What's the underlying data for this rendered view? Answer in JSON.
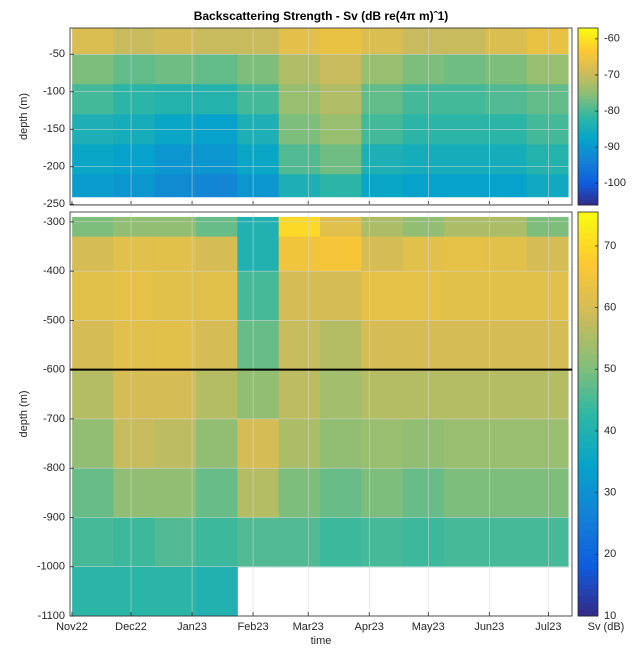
{
  "chart_data": [
    {
      "type": "heatmap",
      "title": "Backscattering Strength - Sv (dB re(4π m)ˆ1)",
      "ylabel": "depth (m)",
      "x_edges": [
        0,
        21,
        42,
        63,
        84,
        105,
        126,
        147,
        168,
        189,
        210,
        231,
        252
      ],
      "y_edges": [
        -15,
        -50,
        -90,
        -130,
        -170,
        -210,
        -240
      ],
      "values": [
        [
          -68,
          -70,
          -69,
          -70,
          -70,
          -67,
          -66,
          -68,
          -70,
          -70,
          -68,
          -66
        ],
        [
          -76,
          -78,
          -77,
          -78,
          -76,
          -72,
          -70,
          -74,
          -76,
          -77,
          -76,
          -74
        ],
        [
          -80,
          -82,
          -83,
          -83,
          -80,
          -74,
          -72,
          -78,
          -80,
          -80,
          -79,
          -78
        ],
        [
          -84,
          -85,
          -87,
          -88,
          -84,
          -76,
          -74,
          -80,
          -82,
          -82,
          -82,
          -80
        ],
        [
          -87,
          -88,
          -90,
          -90,
          -87,
          -79,
          -77,
          -84,
          -85,
          -85,
          -85,
          -83
        ],
        [
          -89,
          -90,
          -92,
          -93,
          -90,
          -84,
          -82,
          -87,
          -88,
          -88,
          -88,
          -86
        ]
      ],
      "xlim": [
        -1,
        254
      ],
      "ylim": [
        -251,
        -15
      ],
      "xticks": [
        0,
        30,
        61,
        92,
        120,
        151,
        181,
        212,
        242
      ],
      "yticks": [
        -250,
        -200,
        -150,
        -100,
        -50
      ],
      "clim": [
        -106,
        -57
      ],
      "cticks": [
        -100,
        -90,
        -80,
        -70,
        -60
      ],
      "grid": true,
      "colormap": [
        "#352a87",
        "#0f5cdd",
        "#1481d6",
        "#06a4ca",
        "#2eb7a4",
        "#87bf77",
        "#d1bb59",
        "#fec832",
        "#f9fb0e"
      ]
    },
    {
      "type": "heatmap",
      "ylabel": "depth (m)",
      "xlabel": "time",
      "colorbar_label": "Sv (dB)",
      "x_edges": [
        0,
        21,
        42,
        63,
        84,
        105,
        126,
        147,
        168,
        189,
        210,
        231,
        252
      ],
      "y_edges": [
        -290,
        -330,
        -400,
        -500,
        -600,
        -700,
        -800,
        -900,
        -1000,
        -1100
      ],
      "values": [
        [
          50,
          52,
          52,
          48,
          40,
          70,
          62,
          55,
          52,
          55,
          55,
          50
        ],
        [
          60,
          62,
          62,
          60,
          40,
          65,
          66,
          60,
          62,
          63,
          62,
          60
        ],
        [
          62,
          63,
          62,
          62,
          45,
          60,
          60,
          63,
          63,
          62,
          62,
          62
        ],
        [
          60,
          62,
          62,
          60,
          48,
          58,
          56,
          60,
          60,
          60,
          60,
          60
        ],
        [
          56,
          60,
          60,
          56,
          52,
          57,
          54,
          56,
          56,
          56,
          56,
          56
        ],
        [
          52,
          58,
          57,
          52,
          60,
          55,
          52,
          53,
          52,
          53,
          53,
          53
        ],
        [
          48,
          52,
          52,
          48,
          56,
          50,
          48,
          50,
          48,
          50,
          50,
          50
        ],
        [
          45,
          44,
          46,
          44,
          46,
          46,
          44,
          45,
          44,
          45,
          45,
          45
        ],
        [
          42,
          42,
          42,
          40,
          null,
          null,
          null,
          null,
          null,
          null,
          null,
          null
        ]
      ],
      "xlim": [
        -1,
        254
      ],
      "ylim": [
        -1100,
        -280
      ],
      "xticks": [
        {
          "value": 0,
          "label": "Nov22"
        },
        {
          "value": 30,
          "label": "Dec22"
        },
        {
          "value": 61,
          "label": "Jan23"
        },
        {
          "value": 92,
          "label": "Feb23"
        },
        {
          "value": 120,
          "label": "Mar23"
        },
        {
          "value": 151,
          "label": "Apr23"
        },
        {
          "value": 181,
          "label": "May23"
        },
        {
          "value": 212,
          "label": "Jun23"
        },
        {
          "value": 242,
          "label": "Jul23"
        }
      ],
      "yticks": [
        -1100,
        -1000,
        -900,
        -800,
        -700,
        -600,
        -500,
        -400,
        -300
      ],
      "clim": [
        10,
        75.5
      ],
      "cticks": [
        10,
        20,
        30,
        40,
        50,
        60,
        70
      ],
      "hline": -600,
      "hline_color": "#000000",
      "grid": true,
      "colormap": [
        "#352a87",
        "#0f5cdd",
        "#1481d6",
        "#06a4ca",
        "#2eb7a4",
        "#87bf77",
        "#d1bb59",
        "#fec832",
        "#f9fb0e"
      ]
    }
  ]
}
